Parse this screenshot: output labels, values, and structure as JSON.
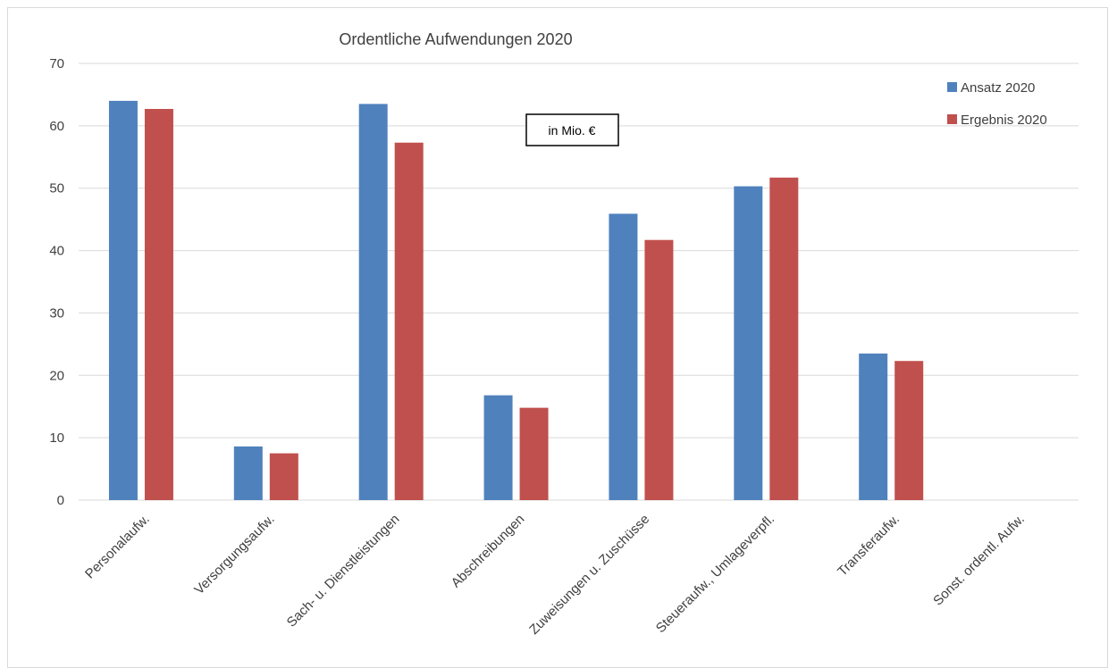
{
  "chart_data": {
    "type": "bar",
    "title": "Ordentliche Aufwendungen 2020",
    "annotation": "in Mio. €",
    "xlabel": "",
    "ylabel": "",
    "ylim": [
      0,
      70
    ],
    "yticks": [
      0,
      10,
      20,
      30,
      40,
      50,
      60,
      70
    ],
    "grid": true,
    "legend_position": "top-right",
    "categories": [
      "Personalaufw.",
      "Versorgungsaufw.",
      "Sach- u. Dienstleistungen",
      "Abschreibungen",
      "Zuweisungen u. Zuschüsse",
      "Steueraufw., Umlageverpfl.",
      "Transferaufw.",
      "Sonst. ordentl. Aufw."
    ],
    "series": [
      {
        "name": "Ansatz 2020",
        "color": "#4f81bd",
        "values": [
          64.0,
          8.6,
          63.5,
          16.8,
          45.9,
          50.3,
          23.5,
          0
        ]
      },
      {
        "name": "Ergebnis 2020",
        "color": "#c0504d",
        "values": [
          62.7,
          7.5,
          57.3,
          14.8,
          41.7,
          51.7,
          22.3,
          0
        ]
      }
    ]
  }
}
